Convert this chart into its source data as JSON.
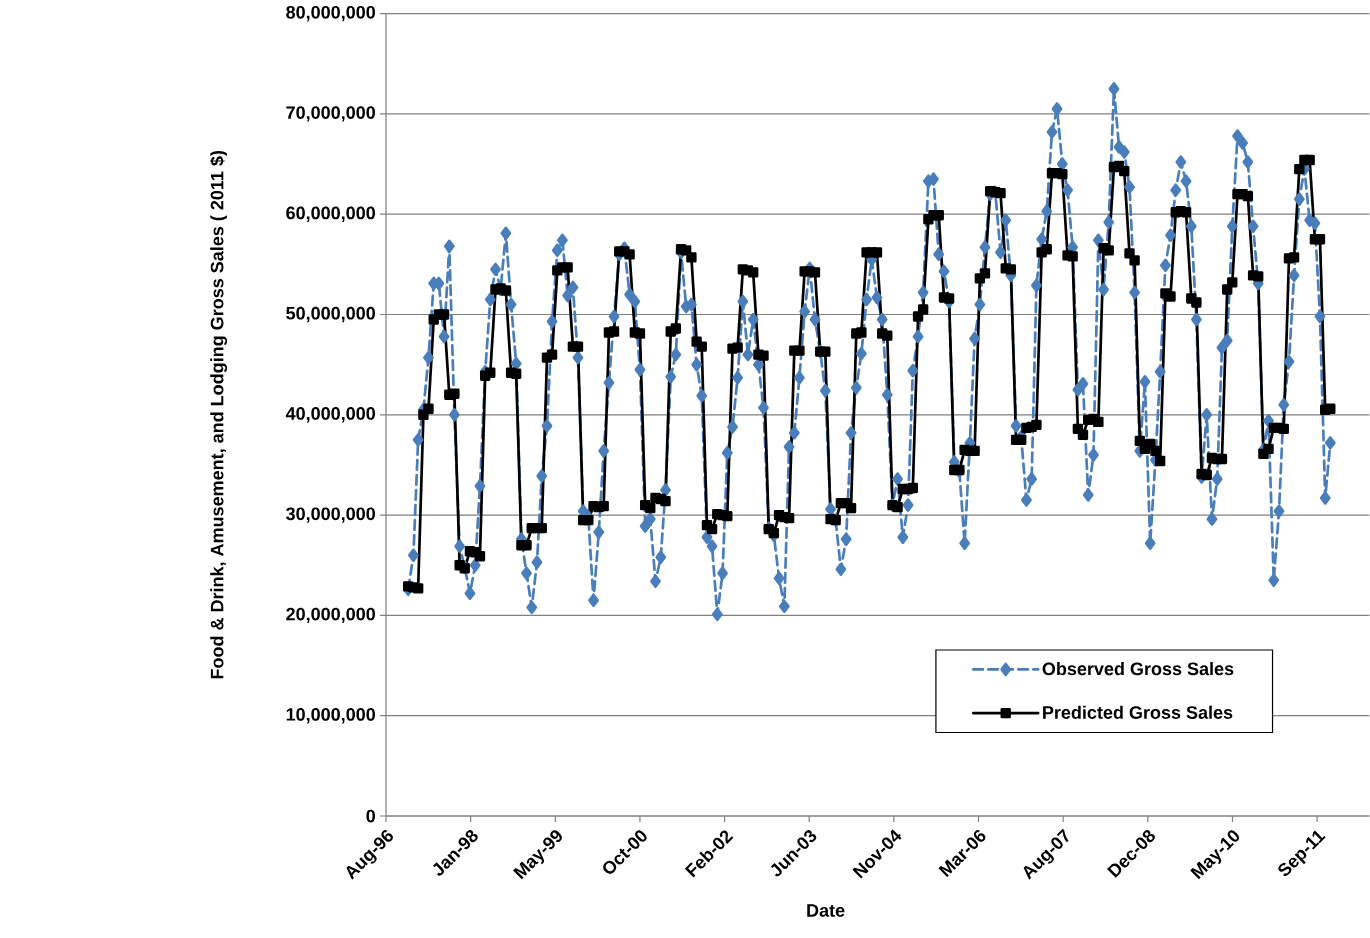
{
  "chart_data": {
    "type": "line",
    "xlabel": "Date",
    "ylabel": "Food & Drink, Amusement, and Lodging Gross Sales ( 2011 $)",
    "x": [
      "1997-01",
      "1997-02",
      "1997-03",
      "1997-04",
      "1997-05",
      "1997-06",
      "1997-07",
      "1997-08",
      "1997-09",
      "1997-10",
      "1997-11",
      "1997-12",
      "1998-01",
      "1998-02",
      "1998-03",
      "1998-04",
      "1998-05",
      "1998-06",
      "1998-07",
      "1998-08",
      "1998-09",
      "1998-10",
      "1998-11",
      "1998-12",
      "1999-01",
      "1999-02",
      "1999-03",
      "1999-04",
      "1999-05",
      "1999-06",
      "1999-07",
      "1999-08",
      "1999-09",
      "1999-10",
      "1999-11",
      "1999-12",
      "2000-01",
      "2000-02",
      "2000-03",
      "2000-04",
      "2000-05",
      "2000-06",
      "2000-07",
      "2000-08",
      "2000-09",
      "2000-10",
      "2000-11",
      "2000-12",
      "2001-01",
      "2001-02",
      "2001-03",
      "2001-04",
      "2001-05",
      "2001-06",
      "2001-07",
      "2001-08",
      "2001-09",
      "2001-10",
      "2001-11",
      "2001-12",
      "2002-01",
      "2002-02",
      "2002-03",
      "2002-04",
      "2002-05",
      "2002-06",
      "2002-07",
      "2002-08",
      "2002-09",
      "2002-10",
      "2002-11",
      "2002-12",
      "2003-01",
      "2003-02",
      "2003-03",
      "2003-04",
      "2003-05",
      "2003-06",
      "2003-07",
      "2003-08",
      "2003-09",
      "2003-10",
      "2003-11",
      "2003-12",
      "2004-01",
      "2004-02",
      "2004-03",
      "2004-04",
      "2004-05",
      "2004-06",
      "2004-07",
      "2004-08",
      "2004-09",
      "2004-10",
      "2004-11",
      "2004-12",
      "2005-01",
      "2005-02",
      "2005-03",
      "2005-04",
      "2005-05",
      "2005-06",
      "2005-07",
      "2005-08",
      "2005-09",
      "2005-10",
      "2005-11",
      "2005-12",
      "2006-01",
      "2006-02",
      "2006-03",
      "2006-04",
      "2006-05",
      "2006-06",
      "2006-07",
      "2006-08",
      "2006-09",
      "2006-10",
      "2006-11",
      "2006-12",
      "2007-01",
      "2007-02",
      "2007-03",
      "2007-04",
      "2007-05",
      "2007-06",
      "2007-07",
      "2007-08",
      "2007-09",
      "2007-10",
      "2007-11",
      "2007-12",
      "2008-01",
      "2008-02",
      "2008-03",
      "2008-04",
      "2008-05",
      "2008-06",
      "2008-07",
      "2008-08",
      "2008-09",
      "2008-10",
      "2008-11",
      "2008-12",
      "2009-01",
      "2009-02",
      "2009-03",
      "2009-04",
      "2009-05",
      "2009-06",
      "2009-07",
      "2009-08",
      "2009-09",
      "2009-10",
      "2009-11",
      "2009-12",
      "2010-01",
      "2010-02",
      "2010-03",
      "2010-04",
      "2010-05",
      "2010-06",
      "2010-07",
      "2010-08",
      "2010-09",
      "2010-10",
      "2010-11",
      "2010-12",
      "2011-01",
      "2011-02",
      "2011-03",
      "2011-04",
      "2011-05",
      "2011-06",
      "2011-07",
      "2011-08",
      "2011-09",
      "2011-10",
      "2011-11",
      "2011-12"
    ],
    "series": [
      {
        "name": "Observed Gross Sales",
        "color": "#4a7ebb",
        "marker": "diamond",
        "line_style": "dashed",
        "values": [
          22600000,
          26000000,
          37500000,
          40500000,
          45700000,
          53100000,
          53100000,
          47800000,
          56800000,
          40000000,
          26900000,
          24800000,
          22200000,
          25000000,
          32900000,
          44300000,
          51500000,
          54500000,
          52500000,
          58100000,
          51000000,
          45100000,
          27600000,
          24200000,
          20800000,
          25300000,
          33900000,
          38900000,
          49300000,
          56400000,
          57400000,
          51900000,
          52700000,
          45700000,
          30400000,
          29800000,
          21500000,
          28300000,
          36400000,
          43200000,
          49800000,
          56000000,
          56600000,
          52000000,
          51300000,
          44500000,
          28900000,
          29600000,
          23400000,
          25800000,
          32500000,
          43800000,
          46000000,
          56200000,
          50800000,
          51000000,
          45000000,
          41900000,
          27800000,
          26900000,
          20100000,
          24200000,
          36200000,
          38800000,
          43700000,
          51300000,
          46000000,
          49500000,
          45000000,
          40700000,
          28700000,
          28000000,
          23700000,
          20900000,
          36800000,
          38200000,
          43700000,
          50300000,
          54600000,
          49500000,
          46300000,
          42400000,
          30600000,
          29500000,
          24600000,
          27600000,
          38200000,
          42700000,
          46100000,
          51500000,
          55500000,
          51700000,
          49500000,
          42000000,
          31000000,
          33600000,
          27800000,
          31000000,
          44400000,
          47800000,
          52200000,
          63300000,
          63500000,
          56000000,
          54300000,
          51300000,
          35300000,
          34400000,
          27200000,
          37200000,
          47600000,
          51000000,
          56700000,
          62000000,
          62200000,
          56200000,
          59400000,
          53900000,
          38900000,
          37800000,
          31500000,
          33600000,
          52900000,
          57500000,
          60300000,
          68200000,
          70500000,
          65000000,
          62400000,
          56700000,
          42500000,
          43100000,
          32000000,
          36000000,
          57400000,
          52500000,
          59200000,
          72500000,
          66700000,
          66200000,
          62700000,
          52200000,
          36400000,
          43300000,
          27200000,
          35500000,
          44300000,
          54900000,
          57900000,
          62400000,
          65200000,
          63300000,
          58800000,
          49500000,
          33800000,
          40000000,
          29600000,
          33600000,
          46700000,
          47400000,
          58800000,
          67800000,
          67100000,
          65200000,
          58800000,
          53100000,
          36500000,
          39400000,
          23500000,
          30400000,
          41000000,
          45300000,
          53900000,
          61500000,
          64500000,
          59400000,
          59100000,
          49800000,
          31700000,
          37200000
        ]
      },
      {
        "name": "Predicted Gross Sales",
        "color": "#000000",
        "marker": "square",
        "line_style": "solid",
        "values": [
          22900000,
          22800000,
          22700000,
          40000000,
          40600000,
          49500000,
          50000000,
          50000000,
          42000000,
          42100000,
          25000000,
          24700000,
          26400000,
          26300000,
          25900000,
          43900000,
          44200000,
          52500000,
          52600000,
          52400000,
          44200000,
          44100000,
          27000000,
          27000000,
          28700000,
          28700000,
          28700000,
          45700000,
          46000000,
          54400000,
          54700000,
          54700000,
          46800000,
          46800000,
          29500000,
          29500000,
          30900000,
          30800000,
          30900000,
          48200000,
          48300000,
          56300000,
          56300000,
          56000000,
          48200000,
          48100000,
          31000000,
          30700000,
          31700000,
          31600000,
          31400000,
          48300000,
          48600000,
          56500000,
          56400000,
          55700000,
          47300000,
          46800000,
          29000000,
          28600000,
          30100000,
          30000000,
          29900000,
          46600000,
          46700000,
          54500000,
          54400000,
          54200000,
          46000000,
          45900000,
          28600000,
          28200000,
          30000000,
          29800000,
          29700000,
          46400000,
          46400000,
          54300000,
          54300000,
          54200000,
          46300000,
          46300000,
          29600000,
          29500000,
          31200000,
          31200000,
          30700000,
          48100000,
          48200000,
          56200000,
          56200000,
          56200000,
          48100000,
          47900000,
          31000000,
          30800000,
          32600000,
          32600000,
          32700000,
          49800000,
          50500000,
          59500000,
          59900000,
          59900000,
          51700000,
          51600000,
          34500000,
          34500000,
          36500000,
          36400000,
          36400000,
          53600000,
          54100000,
          62300000,
          62200000,
          62100000,
          54600000,
          54500000,
          37500000,
          37500000,
          38700000,
          38800000,
          39000000,
          56200000,
          56500000,
          64100000,
          64100000,
          64000000,
          55900000,
          55800000,
          38600000,
          38000000,
          39500000,
          39600000,
          39300000,
          56600000,
          56400000,
          64700000,
          64800000,
          64300000,
          56100000,
          55400000,
          37400000,
          36600000,
          37100000,
          36400000,
          35400000,
          52100000,
          51800000,
          60200000,
          60300000,
          60200000,
          51600000,
          51200000,
          34100000,
          34000000,
          35700000,
          35600000,
          35600000,
          52500000,
          53200000,
          62000000,
          62000000,
          61800000,
          53900000,
          53800000,
          36100000,
          36600000,
          38700000,
          38700000,
          38600000,
          55600000,
          55700000,
          64500000,
          65400000,
          65400000,
          57500000,
          57500000,
          40500000,
          40600000
        ]
      }
    ],
    "xlim": [
      "1996-08-23",
      "2012-07-19"
    ],
    "xticks": [
      {
        "value": "1996-08-23",
        "label": "Aug-96"
      },
      {
        "value": "1998-01-05",
        "label": "Jan-98"
      },
      {
        "value": "1999-05-20",
        "label": "May-99"
      },
      {
        "value": "2000-10-01",
        "label": "Oct-00"
      },
      {
        "value": "2002-02-13",
        "label": "Feb-02"
      },
      {
        "value": "2003-06-28",
        "label": "Jun-03"
      },
      {
        "value": "2004-11-09",
        "label": "Nov-04"
      },
      {
        "value": "2006-03-24",
        "label": "Mar-06"
      },
      {
        "value": "2007-08-06",
        "label": "Aug-07"
      },
      {
        "value": "2008-12-18",
        "label": "Dec-08"
      },
      {
        "value": "2010-05-02",
        "label": "May-10"
      },
      {
        "value": "2011-09-14",
        "label": "Sep-11"
      }
    ],
    "ylim": [
      0,
      80000000
    ],
    "yticks": [
      0,
      {
        "value": 10000000,
        "label": "10,000,000"
      },
      {
        "value": 20000000,
        "label": "20,000,000"
      },
      {
        "value": 30000000,
        "label": "30,000,000"
      },
      {
        "value": 40000000,
        "label": "40,000,000"
      },
      {
        "value": 50000000,
        "label": "50,000,000"
      },
      {
        "value": 60000000,
        "label": "60,000,000"
      },
      {
        "value": 70000000,
        "label": "70,000,000"
      },
      {
        "value": 80000000,
        "label": "80,000,000"
      }
    ],
    "grid": "y",
    "legend": "bottom right"
  }
}
